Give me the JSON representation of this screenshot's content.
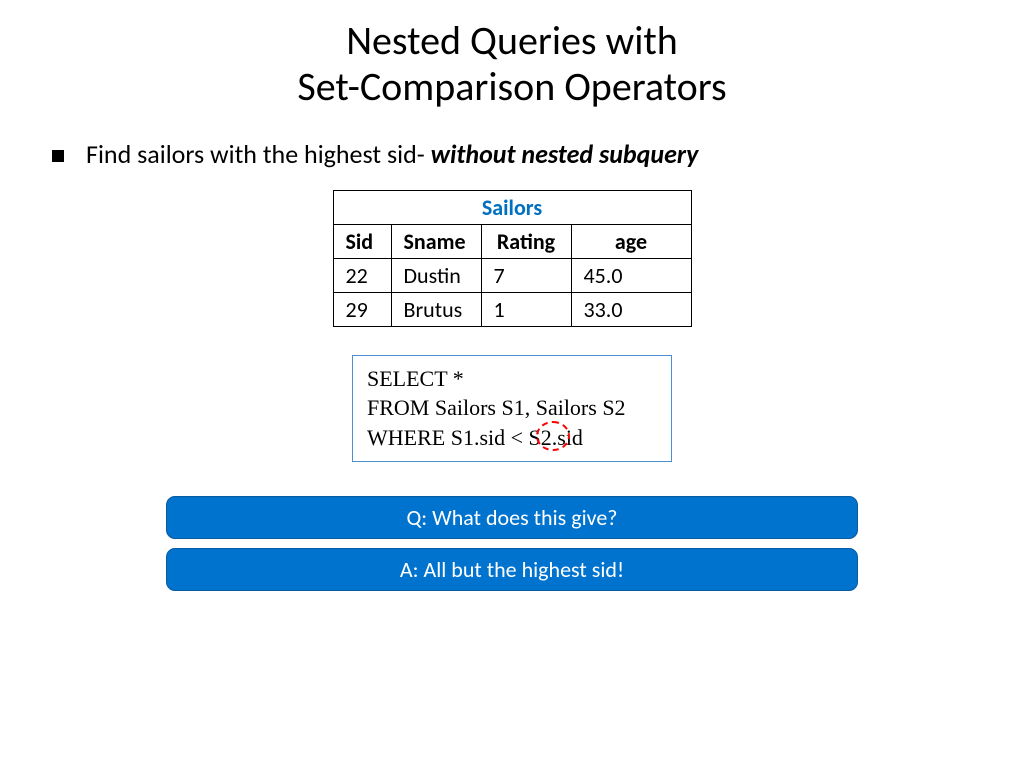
{
  "title_line1": "Nested Queries with",
  "title_line2": "Set-Comparison Operators",
  "bullet_prefix": "Find sailors with the highest sid- ",
  "bullet_emph": "without nested subquery",
  "table": {
    "caption": "Sailors",
    "headers": {
      "sid": "Sid",
      "sname": "Sname",
      "rating": "Rating",
      "age": "age"
    },
    "rows": [
      {
        "sid": "22",
        "sname": "Dustin",
        "rating": "7",
        "age": "45.0"
      },
      {
        "sid": "29",
        "sname": "Brutus",
        "rating": "1",
        "age": "33.0"
      }
    ],
    "border_color": "#000000",
    "caption_color": "#0070c0",
    "font_size": 22
  },
  "query": {
    "kw_select": "SELECT",
    "select_body": "  *",
    "kw_from": "FROM",
    "from_body": "  Sailors S1, Sailors S2",
    "kw_where": "WHERE",
    "where_body": "  S1.sid < S2.sid",
    "box_border_color": "#4a8fd1",
    "circle_color": "#ff0000",
    "font_size": 22
  },
  "banners": {
    "q": "Q: What does this give?",
    "a": "A: All but the highest sid!",
    "bg_color": "#0073cf",
    "text_color": "#ffffff",
    "font_size": 22,
    "radius": 9
  }
}
